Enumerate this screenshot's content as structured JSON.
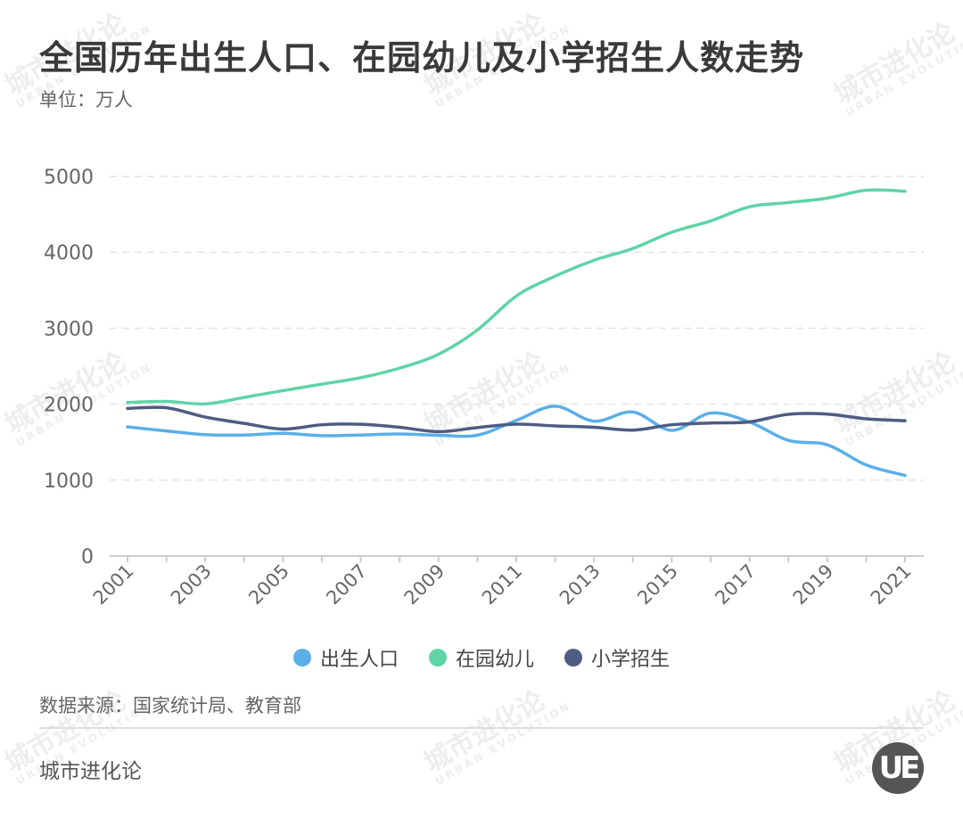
{
  "title": "全国历年出生人口、在园幼儿及小学招生人数走势",
  "unit": "单位：万人",
  "source": "数据来源：国家统计局、教育部",
  "footer": "城市进化论",
  "logo_text": "UE",
  "watermark": {
    "cn": "城市进化论",
    "en": "URBAN EVOLUTION"
  },
  "chart_data": {
    "type": "line",
    "title": "全国历年出生人口、在园幼儿及小学招生人数走势",
    "ylabel": "单位：万人",
    "xlabel": "",
    "ylim": [
      0,
      5000
    ],
    "yticks": [
      0,
      1000,
      2000,
      3000,
      4000,
      5000
    ],
    "grid": true,
    "legend_position": "bottom",
    "x": [
      2001,
      2002,
      2003,
      2004,
      2005,
      2006,
      2007,
      2008,
      2009,
      2010,
      2011,
      2012,
      2013,
      2014,
      2015,
      2016,
      2017,
      2018,
      2019,
      2020,
      2021
    ],
    "xtick_labels": [
      "2001",
      "2003",
      "2005",
      "2007",
      "2009",
      "2011",
      "2013",
      "2015",
      "2017",
      "2019",
      "2021"
    ],
    "series": [
      {
        "name": "出生人口",
        "color": "#5aafe8",
        "values": [
          1702,
          1647,
          1599,
          1593,
          1617,
          1585,
          1594,
          1608,
          1591,
          1592,
          1786,
          1973,
          1776,
          1897,
          1655,
          1883,
          1765,
          1523,
          1465,
          1200,
          1062
        ]
      },
      {
        "name": "在园幼儿",
        "color": "#5fd4a6",
        "values": [
          2022,
          2036,
          2004,
          2089,
          2179,
          2264,
          2349,
          2475,
          2658,
          2977,
          3424,
          3686,
          3895,
          4051,
          4265,
          4414,
          4600,
          4656,
          4714,
          4818,
          4805
        ]
      },
      {
        "name": "小学招生",
        "color": "#4e5c84",
        "values": [
          1944,
          1953,
          1830,
          1747,
          1672,
          1729,
          1736,
          1696,
          1638,
          1692,
          1737,
          1714,
          1696,
          1658,
          1729,
          1752,
          1767,
          1867,
          1869,
          1808,
          1782
        ]
      }
    ]
  }
}
